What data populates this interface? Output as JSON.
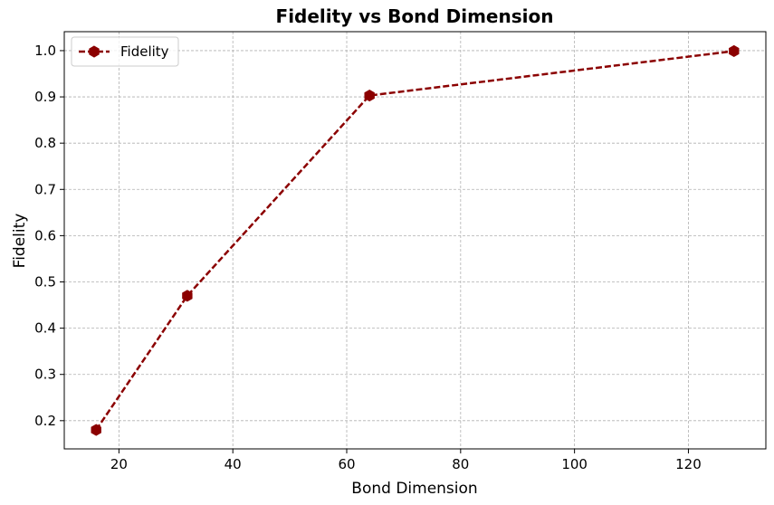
{
  "chart_data": {
    "type": "line",
    "title": "Fidelity vs Bond Dimension",
    "xlabel": "Bond Dimension",
    "ylabel": "Fidelity",
    "xlim": [
      10.4,
      133.6
    ],
    "ylim": [
      0.139,
      1.041
    ],
    "xticks": [
      20,
      40,
      60,
      80,
      100,
      120
    ],
    "yticks": [
      0.2,
      0.3,
      0.4,
      0.5,
      0.6,
      0.7,
      0.8,
      0.9,
      1.0
    ],
    "x": [
      16,
      32,
      64,
      128
    ],
    "series": [
      {
        "name": "Fidelity",
        "values": [
          0.18,
          0.47,
          0.903,
          0.999
        ],
        "color": "#8b0000",
        "line_style": "dashed",
        "marker": "hexagon"
      }
    ],
    "grid": true,
    "legend_position": "top-left"
  }
}
